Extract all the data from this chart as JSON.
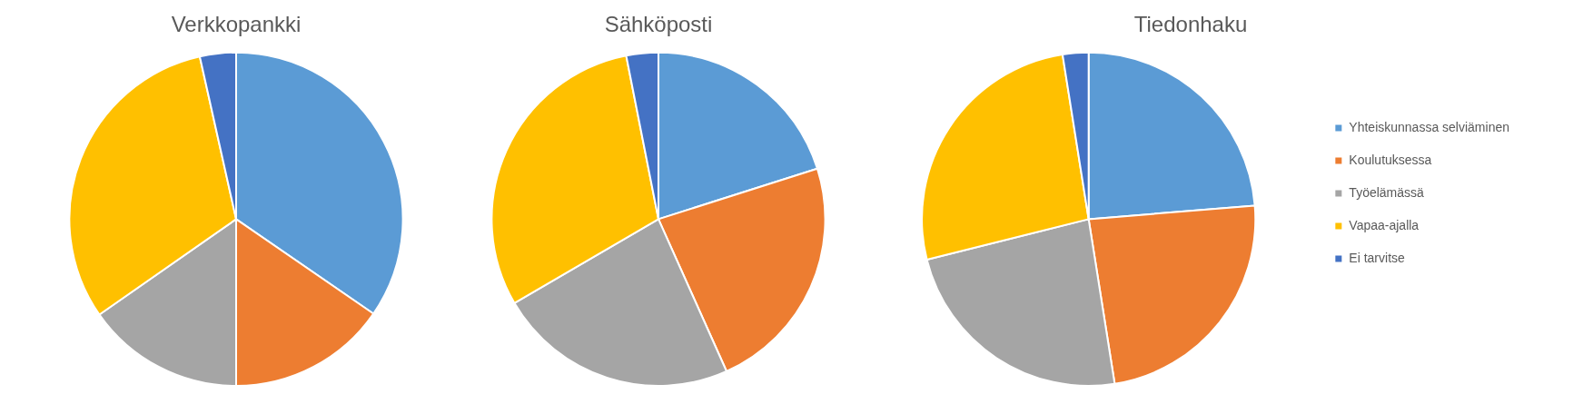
{
  "chart_data": [
    {
      "type": "pie",
      "title": "Verkkopankki",
      "categories": [
        null,
        null,
        null,
        null,
        null
      ],
      "values": [
        34.6,
        15.4,
        15.3,
        31.2,
        3.5
      ],
      "colors": [
        "#5b9bd5",
        "#ed7d31",
        "#a5a5a5",
        "#ffc000",
        "#4472c4"
      ],
      "legend": false
    },
    {
      "type": "pie",
      "title": "Sähköposti",
      "categories": [
        null,
        null,
        null,
        null,
        null
      ],
      "values": [
        20.1,
        23.2,
        23.3,
        30.3,
        3.1
      ],
      "colors": [
        "#5b9bd5",
        "#ed7d31",
        "#a5a5a5",
        "#ffc000",
        "#4472c4"
      ],
      "legend": false
    },
    {
      "type": "pie",
      "title": "Tiedonhaku",
      "categories": [
        "Yhteiskunnassa selviäminen",
        "Koulutuksessa",
        "Työelämässä",
        "Vapaa-ajalla",
        "Ei tarvitse"
      ],
      "values": [
        23.7,
        23.8,
        23.6,
        26.4,
        2.5
      ],
      "colors": [
        "#5b9bd5",
        "#ed7d31",
        "#a5a5a5",
        "#ffc000",
        "#4472c4"
      ],
      "legend": "right"
    }
  ]
}
